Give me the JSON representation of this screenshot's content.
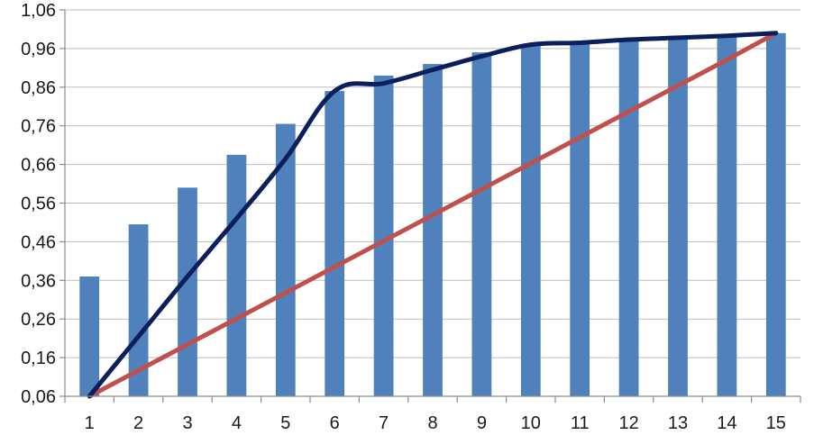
{
  "chart_data": {
    "type": "bar",
    "title": "",
    "xlabel": "",
    "ylabel": "",
    "categories": [
      "1",
      "2",
      "3",
      "4",
      "5",
      "6",
      "7",
      "8",
      "9",
      "10",
      "11",
      "12",
      "13",
      "14",
      "15"
    ],
    "ylim": [
      0.06,
      1.06
    ],
    "yticks": [
      "0,06",
      "0,16",
      "0,26",
      "0,36",
      "0,46",
      "0,56",
      "0,66",
      "0,76",
      "0,86",
      "0,96",
      "1,06"
    ],
    "ytick_values": [
      0.06,
      0.16,
      0.26,
      0.36,
      0.46,
      0.56,
      0.66,
      0.76,
      0.86,
      0.96,
      1.06
    ],
    "grid": true,
    "legend": "none",
    "series": [
      {
        "type": "bar",
        "color": "#4f81bd",
        "values": [
          0.37,
          0.505,
          0.6,
          0.685,
          0.765,
          0.85,
          0.89,
          0.92,
          0.95,
          0.97,
          0.975,
          0.985,
          0.99,
          0.995,
          1.0
        ]
      },
      {
        "type": "line",
        "color": "#c0504d",
        "values": [
          0.06,
          0.127,
          0.194,
          0.261,
          0.328,
          0.395,
          0.462,
          0.529,
          0.596,
          0.663,
          0.73,
          0.797,
          0.864,
          0.931,
          1.0
        ]
      },
      {
        "type": "line",
        "color": "#0b1f5c",
        "values": [
          0.06,
          0.215,
          0.37,
          0.52,
          0.675,
          0.85,
          0.87,
          0.905,
          0.94,
          0.97,
          0.975,
          0.983,
          0.988,
          0.993,
          1.0
        ]
      }
    ]
  }
}
